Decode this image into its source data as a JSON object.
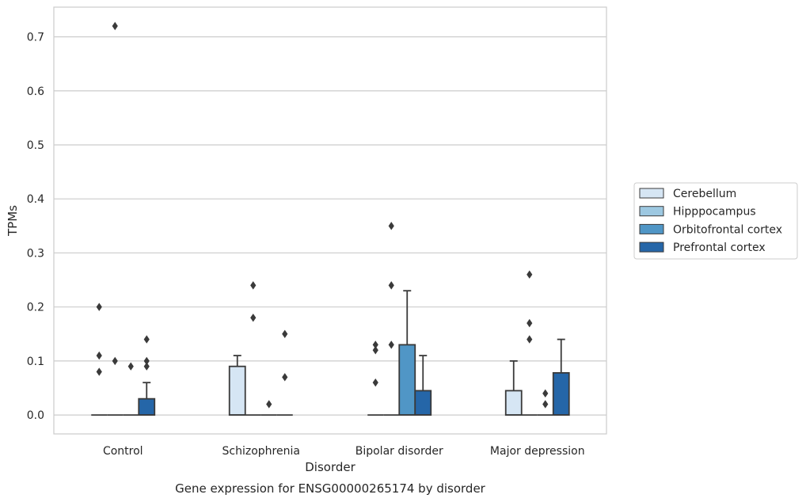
{
  "chart_data": {
    "type": "box",
    "title": "",
    "caption": "Gene expression for ENSG00000265174 by disorder",
    "xlabel": "Disorder",
    "ylabel": "TPMs",
    "categories": [
      "Control",
      "Schizophrenia",
      "Bipolar disorder",
      "Major depression"
    ],
    "ylim": [
      -0.035,
      0.755
    ],
    "yticks": [
      0.0,
      0.1,
      0.2,
      0.3,
      0.4,
      0.5,
      0.6,
      0.7
    ],
    "ytick_labels": [
      "0.0",
      "0.1",
      "0.2",
      "0.3",
      "0.4",
      "0.5",
      "0.6",
      "0.7"
    ],
    "grid": true,
    "legend_position": "right",
    "series": [
      {
        "name": "Cerebellum",
        "color": "#d6e6f4",
        "boxes": [
          {
            "q1": 0.0,
            "median": 0.0,
            "q3": 0.0,
            "whisker_low": 0.0,
            "whisker_high": 0.0,
            "outliers": [
              0.08,
              0.11,
              0.2
            ]
          },
          {
            "q1": 0.0,
            "median": 0.0,
            "q3": 0.09,
            "whisker_low": 0.0,
            "whisker_high": 0.11,
            "outliers": []
          },
          {
            "q1": 0.0,
            "median": 0.0,
            "q3": 0.0,
            "whisker_low": 0.0,
            "whisker_high": 0.0,
            "outliers": [
              0.06,
              0.12,
              0.13
            ]
          },
          {
            "q1": 0.0,
            "median": 0.0,
            "q3": 0.045,
            "whisker_low": 0.0,
            "whisker_high": 0.1,
            "outliers": []
          }
        ]
      },
      {
        "name": "Hipppocampus",
        "color": "#9dc8e1",
        "boxes": [
          {
            "q1": 0.0,
            "median": 0.0,
            "q3": 0.0,
            "whisker_low": 0.0,
            "whisker_high": 0.0,
            "outliers": [
              0.1,
              0.72
            ]
          },
          {
            "q1": 0.0,
            "median": 0.0,
            "q3": 0.0,
            "whisker_low": 0.0,
            "whisker_high": 0.0,
            "outliers": [
              0.18,
              0.24
            ]
          },
          {
            "q1": 0.0,
            "median": 0.0,
            "q3": 0.0,
            "whisker_low": 0.0,
            "whisker_high": 0.0,
            "outliers": [
              0.13,
              0.24,
              0.35
            ]
          },
          {
            "q1": 0.0,
            "median": 0.0,
            "q3": 0.0,
            "whisker_low": 0.0,
            "whisker_high": 0.0,
            "outliers": [
              0.14,
              0.17,
              0.26
            ]
          }
        ]
      },
      {
        "name": "Orbitofrontal cortex",
        "color": "#5096c6",
        "boxes": [
          {
            "q1": 0.0,
            "median": 0.0,
            "q3": 0.0,
            "whisker_low": 0.0,
            "whisker_high": 0.0,
            "outliers": [
              0.09
            ]
          },
          {
            "q1": 0.0,
            "median": 0.0,
            "q3": 0.0,
            "whisker_low": 0.0,
            "whisker_high": 0.0,
            "outliers": [
              0.02
            ]
          },
          {
            "q1": 0.0,
            "median": 0.0,
            "q3": 0.13,
            "whisker_low": 0.0,
            "whisker_high": 0.23,
            "outliers": []
          },
          {
            "q1": 0.0,
            "median": 0.0,
            "q3": 0.0,
            "whisker_low": 0.0,
            "whisker_high": 0.0,
            "outliers": [
              0.02,
              0.04
            ]
          }
        ]
      },
      {
        "name": "Prefrontal cortex",
        "color": "#2566a8",
        "boxes": [
          {
            "q1": 0.0,
            "median": 0.0,
            "q3": 0.03,
            "whisker_low": 0.0,
            "whisker_high": 0.06,
            "outliers": [
              0.09,
              0.1,
              0.14
            ]
          },
          {
            "q1": 0.0,
            "median": 0.0,
            "q3": 0.0,
            "whisker_low": 0.0,
            "whisker_high": 0.0,
            "outliers": [
              0.07,
              0.15
            ]
          },
          {
            "q1": 0.0,
            "median": 0.0,
            "q3": 0.045,
            "whisker_low": 0.0,
            "whisker_high": 0.11,
            "outliers": []
          },
          {
            "q1": 0.0,
            "median": 0.0,
            "q3": 0.078,
            "whisker_low": 0.0,
            "whisker_high": 0.14,
            "outliers": []
          }
        ]
      }
    ]
  }
}
